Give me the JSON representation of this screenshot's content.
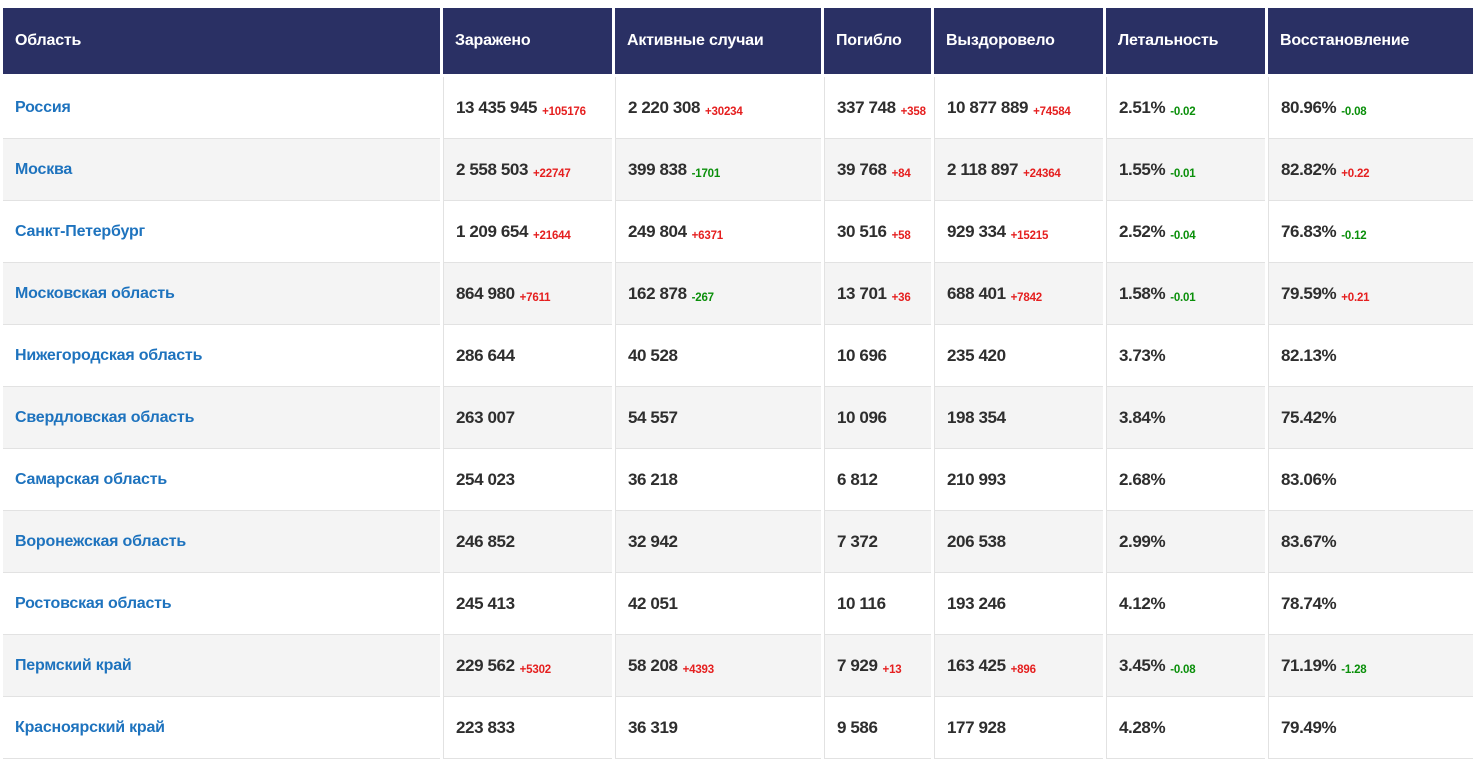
{
  "table": {
    "colors": {
      "header_bg": "#2a3064",
      "link": "#1e73be",
      "text": "#2e2e2e",
      "delta_up": "#e51f1f",
      "delta_down": "#0a8f0a",
      "stripe": "#f4f4f4",
      "border": "#e2e2e2"
    },
    "columns": [
      {
        "label": "Область"
      },
      {
        "label": "Заражено"
      },
      {
        "label": "Активные случаи"
      },
      {
        "label": "Погибло"
      },
      {
        "label": "Выздоровело"
      },
      {
        "label": "Летальность"
      },
      {
        "label": "Восстановление"
      }
    ],
    "rows": [
      {
        "region": "Россия",
        "cells": [
          {
            "value": "13 435 945",
            "delta": "+105176"
          },
          {
            "value": "2 220 308",
            "delta": "+30234"
          },
          {
            "value": "337 748",
            "delta": "+358"
          },
          {
            "value": "10 877 889",
            "delta": "+74584"
          },
          {
            "value": "2.51%",
            "delta": "-0.02"
          },
          {
            "value": "80.96%",
            "delta": "-0.08"
          }
        ]
      },
      {
        "region": "Москва",
        "cells": [
          {
            "value": "2 558 503",
            "delta": "+22747"
          },
          {
            "value": "399 838",
            "delta": "-1701"
          },
          {
            "value": "39 768",
            "delta": "+84"
          },
          {
            "value": "2 118 897",
            "delta": "+24364"
          },
          {
            "value": "1.55%",
            "delta": "-0.01"
          },
          {
            "value": "82.82%",
            "delta": "+0.22"
          }
        ]
      },
      {
        "region": "Санкт-Петербург",
        "cells": [
          {
            "value": "1 209 654",
            "delta": "+21644"
          },
          {
            "value": "249 804",
            "delta": "+6371"
          },
          {
            "value": "30 516",
            "delta": "+58"
          },
          {
            "value": "929 334",
            "delta": "+15215"
          },
          {
            "value": "2.52%",
            "delta": "-0.04"
          },
          {
            "value": "76.83%",
            "delta": "-0.12"
          }
        ]
      },
      {
        "region": "Московская область",
        "cells": [
          {
            "value": "864 980",
            "delta": "+7611"
          },
          {
            "value": "162 878",
            "delta": "-267"
          },
          {
            "value": "13 701",
            "delta": "+36"
          },
          {
            "value": "688 401",
            "delta": "+7842"
          },
          {
            "value": "1.58%",
            "delta": "-0.01"
          },
          {
            "value": "79.59%",
            "delta": "+0.21"
          }
        ]
      },
      {
        "region": "Нижегородская область",
        "cells": [
          {
            "value": "286 644",
            "delta": ""
          },
          {
            "value": "40 528",
            "delta": ""
          },
          {
            "value": "10 696",
            "delta": ""
          },
          {
            "value": "235 420",
            "delta": ""
          },
          {
            "value": "3.73%",
            "delta": ""
          },
          {
            "value": "82.13%",
            "delta": ""
          }
        ]
      },
      {
        "region": "Свердловская область",
        "cells": [
          {
            "value": "263 007",
            "delta": ""
          },
          {
            "value": "54 557",
            "delta": ""
          },
          {
            "value": "10 096",
            "delta": ""
          },
          {
            "value": "198 354",
            "delta": ""
          },
          {
            "value": "3.84%",
            "delta": ""
          },
          {
            "value": "75.42%",
            "delta": ""
          }
        ]
      },
      {
        "region": "Самарская область",
        "cells": [
          {
            "value": "254 023",
            "delta": ""
          },
          {
            "value": "36 218",
            "delta": ""
          },
          {
            "value": "6 812",
            "delta": ""
          },
          {
            "value": "210 993",
            "delta": ""
          },
          {
            "value": "2.68%",
            "delta": ""
          },
          {
            "value": "83.06%",
            "delta": ""
          }
        ]
      },
      {
        "region": "Воронежская область",
        "cells": [
          {
            "value": "246 852",
            "delta": ""
          },
          {
            "value": "32 942",
            "delta": ""
          },
          {
            "value": "7 372",
            "delta": ""
          },
          {
            "value": "206 538",
            "delta": ""
          },
          {
            "value": "2.99%",
            "delta": ""
          },
          {
            "value": "83.67%",
            "delta": ""
          }
        ]
      },
      {
        "region": "Ростовская область",
        "cells": [
          {
            "value": "245 413",
            "delta": ""
          },
          {
            "value": "42 051",
            "delta": ""
          },
          {
            "value": "10 116",
            "delta": ""
          },
          {
            "value": "193 246",
            "delta": ""
          },
          {
            "value": "4.12%",
            "delta": ""
          },
          {
            "value": "78.74%",
            "delta": ""
          }
        ]
      },
      {
        "region": "Пермский край",
        "cells": [
          {
            "value": "229 562",
            "delta": "+5302"
          },
          {
            "value": "58 208",
            "delta": "+4393"
          },
          {
            "value": "7 929",
            "delta": "+13"
          },
          {
            "value": "163 425",
            "delta": "+896"
          },
          {
            "value": "3.45%",
            "delta": "-0.08"
          },
          {
            "value": "71.19%",
            "delta": "-1.28"
          }
        ]
      },
      {
        "region": "Красноярский край",
        "cells": [
          {
            "value": "223 833",
            "delta": ""
          },
          {
            "value": "36 319",
            "delta": ""
          },
          {
            "value": "9 586",
            "delta": ""
          },
          {
            "value": "177 928",
            "delta": ""
          },
          {
            "value": "4.28%",
            "delta": ""
          },
          {
            "value": "79.49%",
            "delta": ""
          }
        ]
      }
    ]
  }
}
